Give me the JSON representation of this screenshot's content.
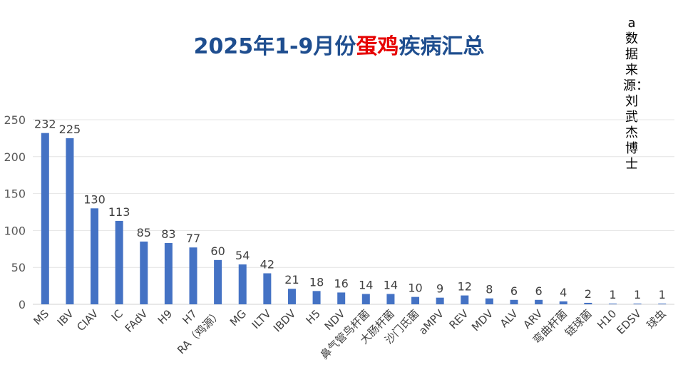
{
  "title": {
    "part1": "2025年1-9月份",
    "highlight": "蛋鸡",
    "part2": "疾病汇总",
    "highlight_color": "#e60000",
    "color": "#1f4e8f"
  },
  "source_note": "a数据来源：刘武杰博士",
  "chart_data": {
    "type": "bar",
    "title": "2025年1-9月份蛋鸡疾病汇总",
    "xlabel": "",
    "ylabel": "",
    "ylim": [
      0,
      250
    ],
    "yticks": [
      0,
      50,
      100,
      150,
      200,
      250
    ],
    "grid": true,
    "bar_color": "#4472c4",
    "categories": [
      "MS",
      "IBV",
      "CIAV",
      "IC",
      "FAdV",
      "H9",
      "H7",
      "RA（鸡源）",
      "MG",
      "ILTV",
      "IBDV",
      "H5",
      "NDV",
      "鼻气管鸟杆菌",
      "大肠杆菌",
      "沙门氏菌",
      "aMPV",
      "REV",
      "MDV",
      "ALV",
      "ARV",
      "弯曲杆菌",
      "链球菌",
      "H10",
      "EDSV",
      "球虫"
    ],
    "values": [
      232,
      225,
      130,
      113,
      85,
      83,
      77,
      60,
      54,
      42,
      21,
      18,
      16,
      14,
      14,
      10,
      9,
      12,
      8,
      6,
      6,
      4,
      2,
      1,
      1,
      1
    ]
  }
}
